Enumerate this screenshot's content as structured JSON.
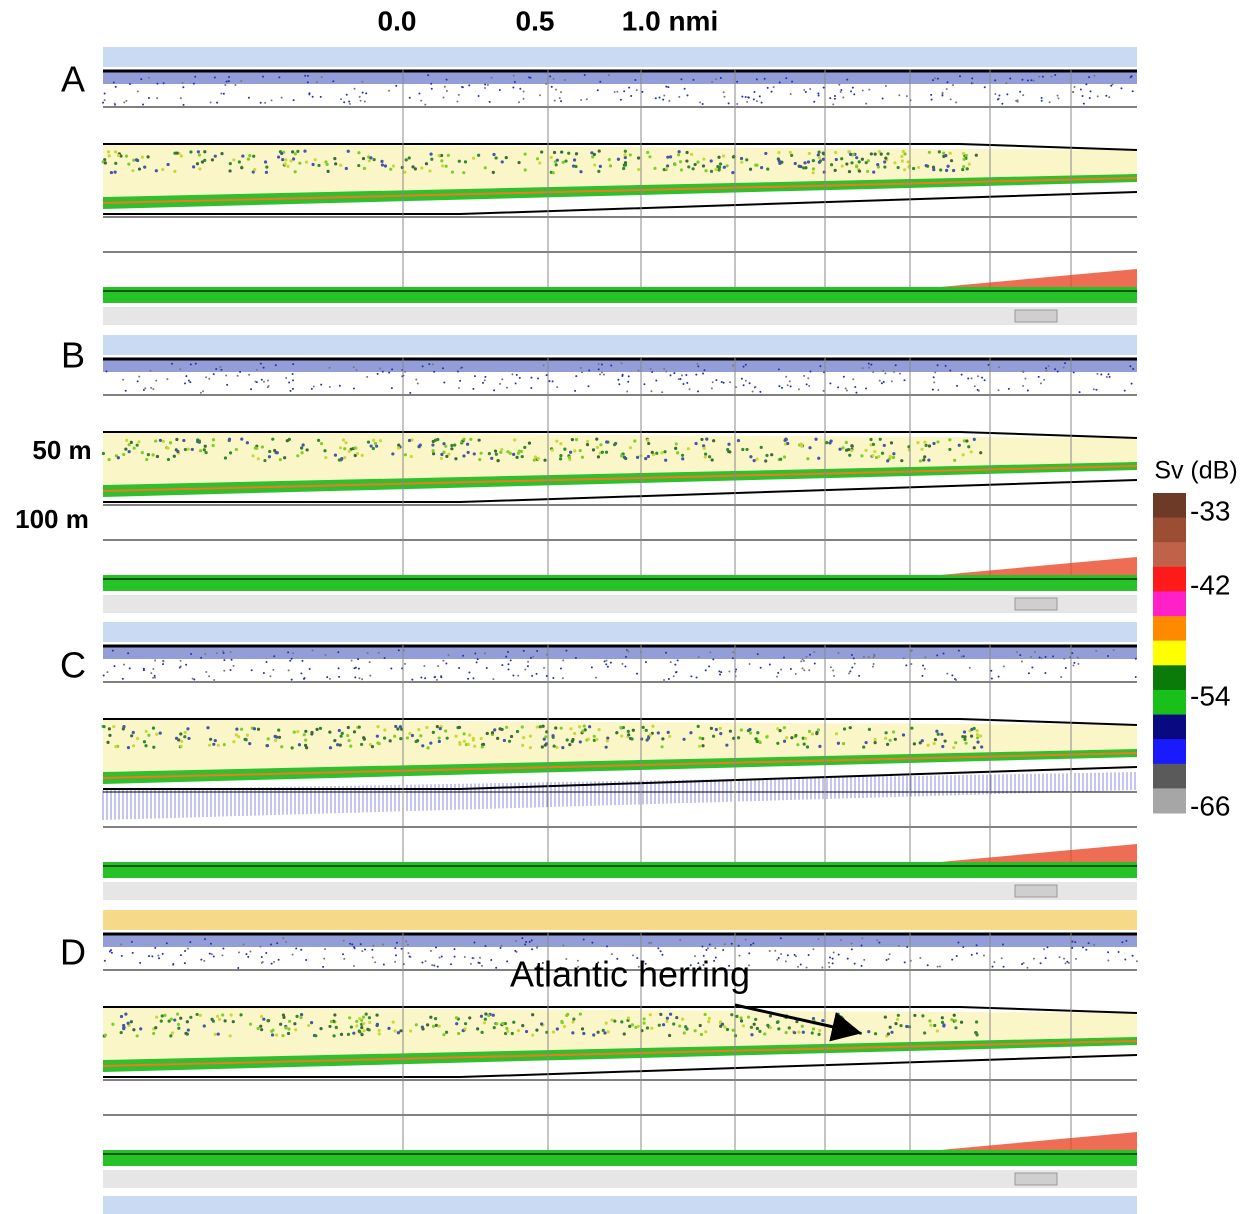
{
  "scale": {
    "labels": [
      "0.0",
      "0.5",
      "1.0 nmi"
    ]
  },
  "panels": [
    {
      "label": "A"
    },
    {
      "label": "B"
    },
    {
      "label": "C"
    },
    {
      "label": "D"
    }
  ],
  "depth_labels": [
    "50 m",
    "100 m"
  ],
  "colorbar": {
    "title": "Sv (dB)",
    "ticks": [
      "-33",
      "-42",
      "-54",
      "-66"
    ],
    "colors": [
      "#6e3a28",
      "#9c4e34",
      "#c0624a",
      "#ff1a1a",
      "#ff20c8",
      "#ff8a00",
      "#ffff00",
      "#0a7a0a",
      "#19c019",
      "#0a0a80",
      "#1a1aff",
      "#5a5a5a",
      "#a6a6a6"
    ]
  },
  "annotation": "Atlantic herring"
}
